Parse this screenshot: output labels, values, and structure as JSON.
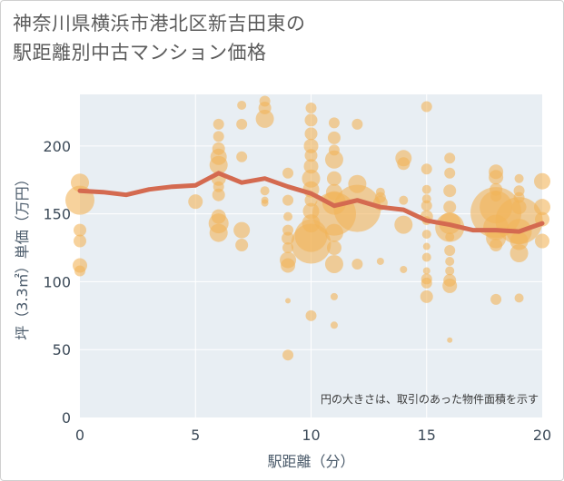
{
  "title": {
    "line1": "神奈川県横浜市港北区新吉田東の",
    "line2": "駅距離別中古マンション価格"
  },
  "colors": {
    "plot_bg": "#e8eef3",
    "grid": "#ffffff",
    "bubble": "#f2b45a",
    "line": "#d46a50",
    "axis_text": "#3d4b59",
    "axis_title": "#4a5a6a",
    "note_text": "#3a3a3a"
  },
  "chart_data": {
    "type": "scatter",
    "xlabel": "駅距離（分）",
    "ylabel": "坪（3.3㎡）単価（万円）",
    "xlim": [
      0,
      20
    ],
    "ylim": [
      0,
      238
    ],
    "xticks": [
      0,
      5,
      10,
      15,
      20
    ],
    "yticks": [
      0,
      50,
      100,
      150,
      200
    ],
    "note": "円の大きさは、取引のあった物件面積を示す",
    "grid": true,
    "trend_line": {
      "x": [
        0,
        1,
        2,
        3,
        4,
        5,
        6,
        7,
        8,
        9,
        10,
        11,
        12,
        13,
        14,
        15,
        16,
        17,
        18,
        19,
        20
      ],
      "y": [
        167,
        166,
        164,
        168,
        170,
        171,
        180,
        173,
        176,
        170,
        165,
        156,
        160,
        155,
        153,
        145,
        142,
        138,
        138,
        137,
        143
      ]
    },
    "bubbles": [
      {
        "x": 0,
        "y": 173,
        "s": 10
      },
      {
        "x": 0,
        "y": 160,
        "s": 16
      },
      {
        "x": 0,
        "y": 138,
        "s": 7
      },
      {
        "x": 0,
        "y": 130,
        "s": 7
      },
      {
        "x": 0,
        "y": 112,
        "s": 8
      },
      {
        "x": 0,
        "y": 108,
        "s": 6
      },
      {
        "x": 5,
        "y": 159,
        "s": 8
      },
      {
        "x": 6,
        "y": 216,
        "s": 6
      },
      {
        "x": 6,
        "y": 207,
        "s": 6
      },
      {
        "x": 6,
        "y": 198,
        "s": 7
      },
      {
        "x": 6,
        "y": 192,
        "s": 9
      },
      {
        "x": 6,
        "y": 186,
        "s": 10
      },
      {
        "x": 6,
        "y": 176,
        "s": 8
      },
      {
        "x": 6,
        "y": 170,
        "s": 6
      },
      {
        "x": 6,
        "y": 164,
        "s": 7
      },
      {
        "x": 6,
        "y": 148,
        "s": 8
      },
      {
        "x": 6,
        "y": 143,
        "s": 11
      },
      {
        "x": 6,
        "y": 136,
        "s": 10
      },
      {
        "x": 7,
        "y": 230,
        "s": 5
      },
      {
        "x": 7,
        "y": 216,
        "s": 6
      },
      {
        "x": 7,
        "y": 192,
        "s": 6
      },
      {
        "x": 7,
        "y": 138,
        "s": 9
      },
      {
        "x": 7,
        "y": 127,
        "s": 7
      },
      {
        "x": 8,
        "y": 233,
        "s": 6
      },
      {
        "x": 8,
        "y": 228,
        "s": 7
      },
      {
        "x": 8,
        "y": 220,
        "s": 10
      },
      {
        "x": 8,
        "y": 167,
        "s": 5
      },
      {
        "x": 8,
        "y": 160,
        "s": 4
      },
      {
        "x": 8,
        "y": 158,
        "s": 4
      },
      {
        "x": 9,
        "y": 180,
        "s": 6
      },
      {
        "x": 9,
        "y": 160,
        "s": 6
      },
      {
        "x": 9,
        "y": 148,
        "s": 5
      },
      {
        "x": 9,
        "y": 138,
        "s": 6
      },
      {
        "x": 9,
        "y": 132,
        "s": 7
      },
      {
        "x": 9,
        "y": 125,
        "s": 6
      },
      {
        "x": 9,
        "y": 116,
        "s": 9
      },
      {
        "x": 9,
        "y": 112,
        "s": 8
      },
      {
        "x": 9,
        "y": 86,
        "s": 3
      },
      {
        "x": 9,
        "y": 46,
        "s": 6
      },
      {
        "x": 10,
        "y": 228,
        "s": 6
      },
      {
        "x": 10,
        "y": 219,
        "s": 7
      },
      {
        "x": 10,
        "y": 209,
        "s": 7
      },
      {
        "x": 10,
        "y": 200,
        "s": 8
      },
      {
        "x": 10,
        "y": 193,
        "s": 7
      },
      {
        "x": 10,
        "y": 185,
        "s": 8
      },
      {
        "x": 10,
        "y": 176,
        "s": 10
      },
      {
        "x": 10,
        "y": 168,
        "s": 9
      },
      {
        "x": 10,
        "y": 160,
        "s": 7
      },
      {
        "x": 10,
        "y": 152,
        "s": 9
      },
      {
        "x": 10,
        "y": 143,
        "s": 10
      },
      {
        "x": 10,
        "y": 134,
        "s": 18
      },
      {
        "x": 10,
        "y": 128,
        "s": 22
      },
      {
        "x": 10,
        "y": 75,
        "s": 6
      },
      {
        "x": 11,
        "y": 217,
        "s": 6
      },
      {
        "x": 11,
        "y": 206,
        "s": 7
      },
      {
        "x": 11,
        "y": 197,
        "s": 6
      },
      {
        "x": 11,
        "y": 190,
        "s": 10
      },
      {
        "x": 11,
        "y": 176,
        "s": 8
      },
      {
        "x": 11,
        "y": 166,
        "s": 9
      },
      {
        "x": 11,
        "y": 158,
        "s": 13
      },
      {
        "x": 11,
        "y": 150,
        "s": 24
      },
      {
        "x": 11,
        "y": 136,
        "s": 10
      },
      {
        "x": 11,
        "y": 125,
        "s": 8
      },
      {
        "x": 11,
        "y": 113,
        "s": 10
      },
      {
        "x": 11,
        "y": 89,
        "s": 4
      },
      {
        "x": 11,
        "y": 68,
        "s": 4
      },
      {
        "x": 12,
        "y": 216,
        "s": 6
      },
      {
        "x": 12,
        "y": 172,
        "s": 10
      },
      {
        "x": 12,
        "y": 154,
        "s": 26
      },
      {
        "x": 12,
        "y": 113,
        "s": 6
      },
      {
        "x": 13,
        "y": 166,
        "s": 5
      },
      {
        "x": 13,
        "y": 162,
        "s": 6
      },
      {
        "x": 13,
        "y": 158,
        "s": 8
      },
      {
        "x": 13,
        "y": 115,
        "s": 4
      },
      {
        "x": 14,
        "y": 191,
        "s": 9
      },
      {
        "x": 14,
        "y": 187,
        "s": 7
      },
      {
        "x": 14,
        "y": 160,
        "s": 5
      },
      {
        "x": 14,
        "y": 142,
        "s": 10
      },
      {
        "x": 14,
        "y": 109,
        "s": 4
      },
      {
        "x": 15,
        "y": 229,
        "s": 6
      },
      {
        "x": 15,
        "y": 183,
        "s": 6
      },
      {
        "x": 15,
        "y": 168,
        "s": 5
      },
      {
        "x": 15,
        "y": 161,
        "s": 5
      },
      {
        "x": 15,
        "y": 156,
        "s": 6
      },
      {
        "x": 15,
        "y": 148,
        "s": 7
      },
      {
        "x": 15,
        "y": 145,
        "s": 5
      },
      {
        "x": 15,
        "y": 135,
        "s": 5
      },
      {
        "x": 15,
        "y": 126,
        "s": 4
      },
      {
        "x": 15,
        "y": 118,
        "s": 5
      },
      {
        "x": 15,
        "y": 108,
        "s": 4
      },
      {
        "x": 15,
        "y": 102,
        "s": 6
      },
      {
        "x": 15,
        "y": 99,
        "s": 6
      },
      {
        "x": 15,
        "y": 89,
        "s": 7
      },
      {
        "x": 16,
        "y": 191,
        "s": 6
      },
      {
        "x": 16,
        "y": 180,
        "s": 6
      },
      {
        "x": 16,
        "y": 167,
        "s": 7
      },
      {
        "x": 16,
        "y": 155,
        "s": 7
      },
      {
        "x": 16,
        "y": 143,
        "s": 12
      },
      {
        "x": 16,
        "y": 140,
        "s": 16
      },
      {
        "x": 16,
        "y": 133,
        "s": 5
      },
      {
        "x": 16,
        "y": 123,
        "s": 6
      },
      {
        "x": 16,
        "y": 115,
        "s": 5
      },
      {
        "x": 16,
        "y": 108,
        "s": 5
      },
      {
        "x": 16,
        "y": 101,
        "s": 7
      },
      {
        "x": 16,
        "y": 97,
        "s": 8
      },
      {
        "x": 16,
        "y": 57,
        "s": 3
      },
      {
        "x": 18,
        "y": 181,
        "s": 8
      },
      {
        "x": 18,
        "y": 177,
        "s": 8
      },
      {
        "x": 18,
        "y": 168,
        "s": 7
      },
      {
        "x": 18,
        "y": 163,
        "s": 6
      },
      {
        "x": 18,
        "y": 155,
        "s": 18
      },
      {
        "x": 18,
        "y": 151,
        "s": 28
      },
      {
        "x": 18,
        "y": 140,
        "s": 14
      },
      {
        "x": 18,
        "y": 132,
        "s": 11
      },
      {
        "x": 18,
        "y": 127,
        "s": 7
      },
      {
        "x": 18,
        "y": 87,
        "s": 6
      },
      {
        "x": 19,
        "y": 176,
        "s": 5
      },
      {
        "x": 19,
        "y": 167,
        "s": 6
      },
      {
        "x": 19,
        "y": 162,
        "s": 6
      },
      {
        "x": 19,
        "y": 155,
        "s": 8
      },
      {
        "x": 19,
        "y": 145,
        "s": 26
      },
      {
        "x": 19,
        "y": 137,
        "s": 14
      },
      {
        "x": 19,
        "y": 130,
        "s": 10
      },
      {
        "x": 19,
        "y": 121,
        "s": 10
      },
      {
        "x": 19,
        "y": 88,
        "s": 5
      },
      {
        "x": 20,
        "y": 174,
        "s": 9
      },
      {
        "x": 20,
        "y": 155,
        "s": 9
      },
      {
        "x": 20,
        "y": 146,
        "s": 8
      },
      {
        "x": 20,
        "y": 130,
        "s": 8
      }
    ]
  }
}
